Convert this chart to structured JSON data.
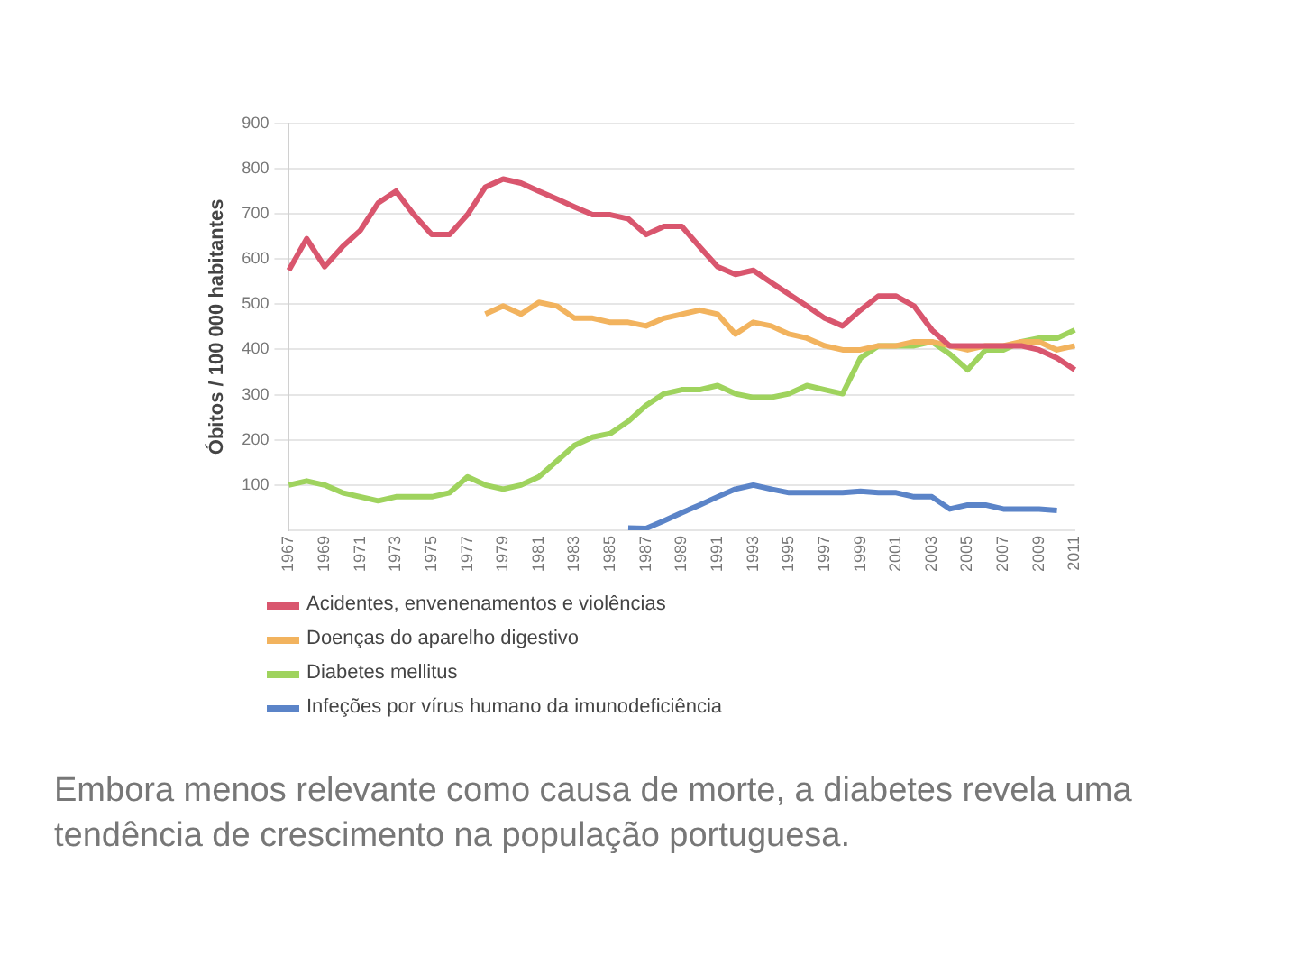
{
  "chart_data": {
    "type": "line",
    "ylabel": "Óbitos / 100 000 habitantes",
    "categories": [
      "1967",
      null,
      "1969",
      null,
      "1971",
      null,
      "1973",
      null,
      "1975",
      null,
      "1977",
      null,
      "1979",
      null,
      "1981",
      null,
      "1983",
      null,
      "1985",
      null,
      "1987",
      null,
      "1989",
      null,
      "1991",
      null,
      "1993",
      null,
      "1995",
      null,
      "1997",
      null,
      "1999",
      null,
      "2001",
      null,
      "2003",
      null,
      "2005",
      null,
      "2007",
      null,
      "2009",
      null,
      "2011"
    ],
    "series": [
      {
        "name": "Acidentes, envenenamentos e violências",
        "color": "#d9566e",
        "values": [
          575,
          645,
          583,
          627,
          663,
          724,
          750,
          698,
          654,
          654,
          698,
          759,
          777,
          768,
          750,
          733,
          715,
          698,
          698,
          689,
          654,
          672,
          672,
          627,
          583,
          566,
          575,
          548,
          522,
          496,
          469,
          452,
          487,
          518,
          518,
          496,
          443,
          408,
          408,
          408,
          408,
          408,
          399,
          381,
          355
        ]
      },
      {
        "name": "Doenças do aparelho digestivo",
        "color": "#f2b35e",
        "values": [
          null,
          null,
          null,
          null,
          null,
          null,
          null,
          null,
          null,
          null,
          null,
          478,
          496,
          478,
          504,
          496,
          469,
          469,
          460,
          460,
          452,
          469,
          478,
          487,
          478,
          434,
          460,
          452,
          434,
          425,
          408,
          399,
          399,
          408,
          408,
          417,
          417,
          408,
          399,
          408,
          408,
          417,
          417,
          399,
          408
        ]
      },
      {
        "name": "Diabetes mellitus",
        "color": "#9fd35e",
        "values": [
          100,
          109,
          100,
          83,
          74,
          65,
          74,
          74,
          74,
          83,
          118,
          100,
          91,
          100,
          118,
          153,
          188,
          206,
          214,
          241,
          276,
          302,
          311,
          311,
          320,
          302,
          294,
          294,
          302,
          320,
          311,
          302,
          381,
          408,
          408,
          408,
          417,
          390,
          355,
          399,
          399,
          417,
          425,
          425,
          443
        ]
      },
      {
        "name": "Infeções por vírus humano da imunodeficiência",
        "color": "#5b84c8",
        "values": [
          null,
          null,
          null,
          null,
          null,
          null,
          null,
          null,
          null,
          null,
          null,
          null,
          null,
          null,
          null,
          null,
          null,
          null,
          null,
          5,
          4,
          21,
          39,
          56,
          74,
          91,
          100,
          91,
          83,
          83,
          83,
          83,
          86,
          83,
          83,
          74,
          74,
          47,
          56,
          56,
          47,
          47,
          47,
          44,
          null
        ]
      }
    ],
    "ylim": [
      0,
      900
    ],
    "yticks": [
      100,
      200,
      300,
      400,
      500,
      600,
      700,
      800,
      900
    ],
    "grid": "y",
    "legend": "bottom",
    "marker": "none",
    "line_style": "solid",
    "annotations": [
      "Embora menos relevante como causa de morte, a diabetes revela uma tendência de crescimento na população portuguesa."
    ]
  }
}
